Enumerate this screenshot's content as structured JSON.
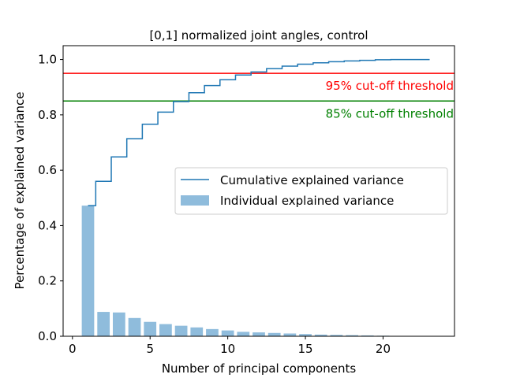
{
  "chart_data": {
    "type": "bar",
    "title": "[0,1] normalized joint angles, control",
    "xlabel": "Number of principal components",
    "ylabel": "Percentage of explained variance",
    "xlim": [
      -0.6,
      24.6
    ],
    "ylim": [
      0.0,
      1.05
    ],
    "xticks": [
      0,
      5,
      10,
      15,
      20
    ],
    "yticks": [
      0.0,
      0.2,
      0.4,
      0.6,
      0.8,
      1.0
    ],
    "x_tick_labels": [
      "0",
      "5",
      "10",
      "15",
      "20"
    ],
    "y_tick_labels": [
      "0.0",
      "0.2",
      "0.4",
      "0.6",
      "0.8",
      "1.0"
    ],
    "legend": {
      "placement": "center-right",
      "entries": [
        "Cumulative explained variance",
        "Individual explained variance"
      ]
    },
    "series": [
      {
        "name": "Individual explained variance",
        "kind": "bar",
        "color": "#8fbcdc",
        "x": [
          1,
          2,
          3,
          4,
          5,
          6,
          7,
          8,
          9,
          10,
          11,
          12,
          13,
          14,
          15,
          16,
          17,
          18,
          19,
          20,
          21,
          22,
          23
        ],
        "values": [
          0.472,
          0.088,
          0.086,
          0.066,
          0.052,
          0.044,
          0.038,
          0.032,
          0.026,
          0.021,
          0.016,
          0.014,
          0.012,
          0.01,
          0.008,
          0.006,
          0.005,
          0.004,
          0.003,
          0.002,
          0.0,
          0.0,
          0.0
        ]
      },
      {
        "name": "Cumulative explained variance",
        "kind": "step",
        "color": "#1f77b4",
        "x": [
          1,
          2,
          3,
          4,
          5,
          6,
          7,
          8,
          9,
          10,
          11,
          12,
          13,
          14,
          15,
          16,
          17,
          18,
          19,
          20,
          21,
          22,
          23
        ],
        "values": [
          0.472,
          0.56,
          0.648,
          0.714,
          0.766,
          0.81,
          0.848,
          0.88,
          0.906,
          0.927,
          0.944,
          0.955,
          0.967,
          0.976,
          0.983,
          0.988,
          0.992,
          0.995,
          0.997,
          0.999,
          1.0,
          1.0,
          1.0
        ]
      }
    ],
    "thresholds": [
      {
        "value": 0.95,
        "label": "95% cut-off threshold",
        "color": "#ff0000"
      },
      {
        "value": 0.85,
        "label": "85% cut-off threshold",
        "color": "#008000"
      }
    ],
    "grid": false
  }
}
